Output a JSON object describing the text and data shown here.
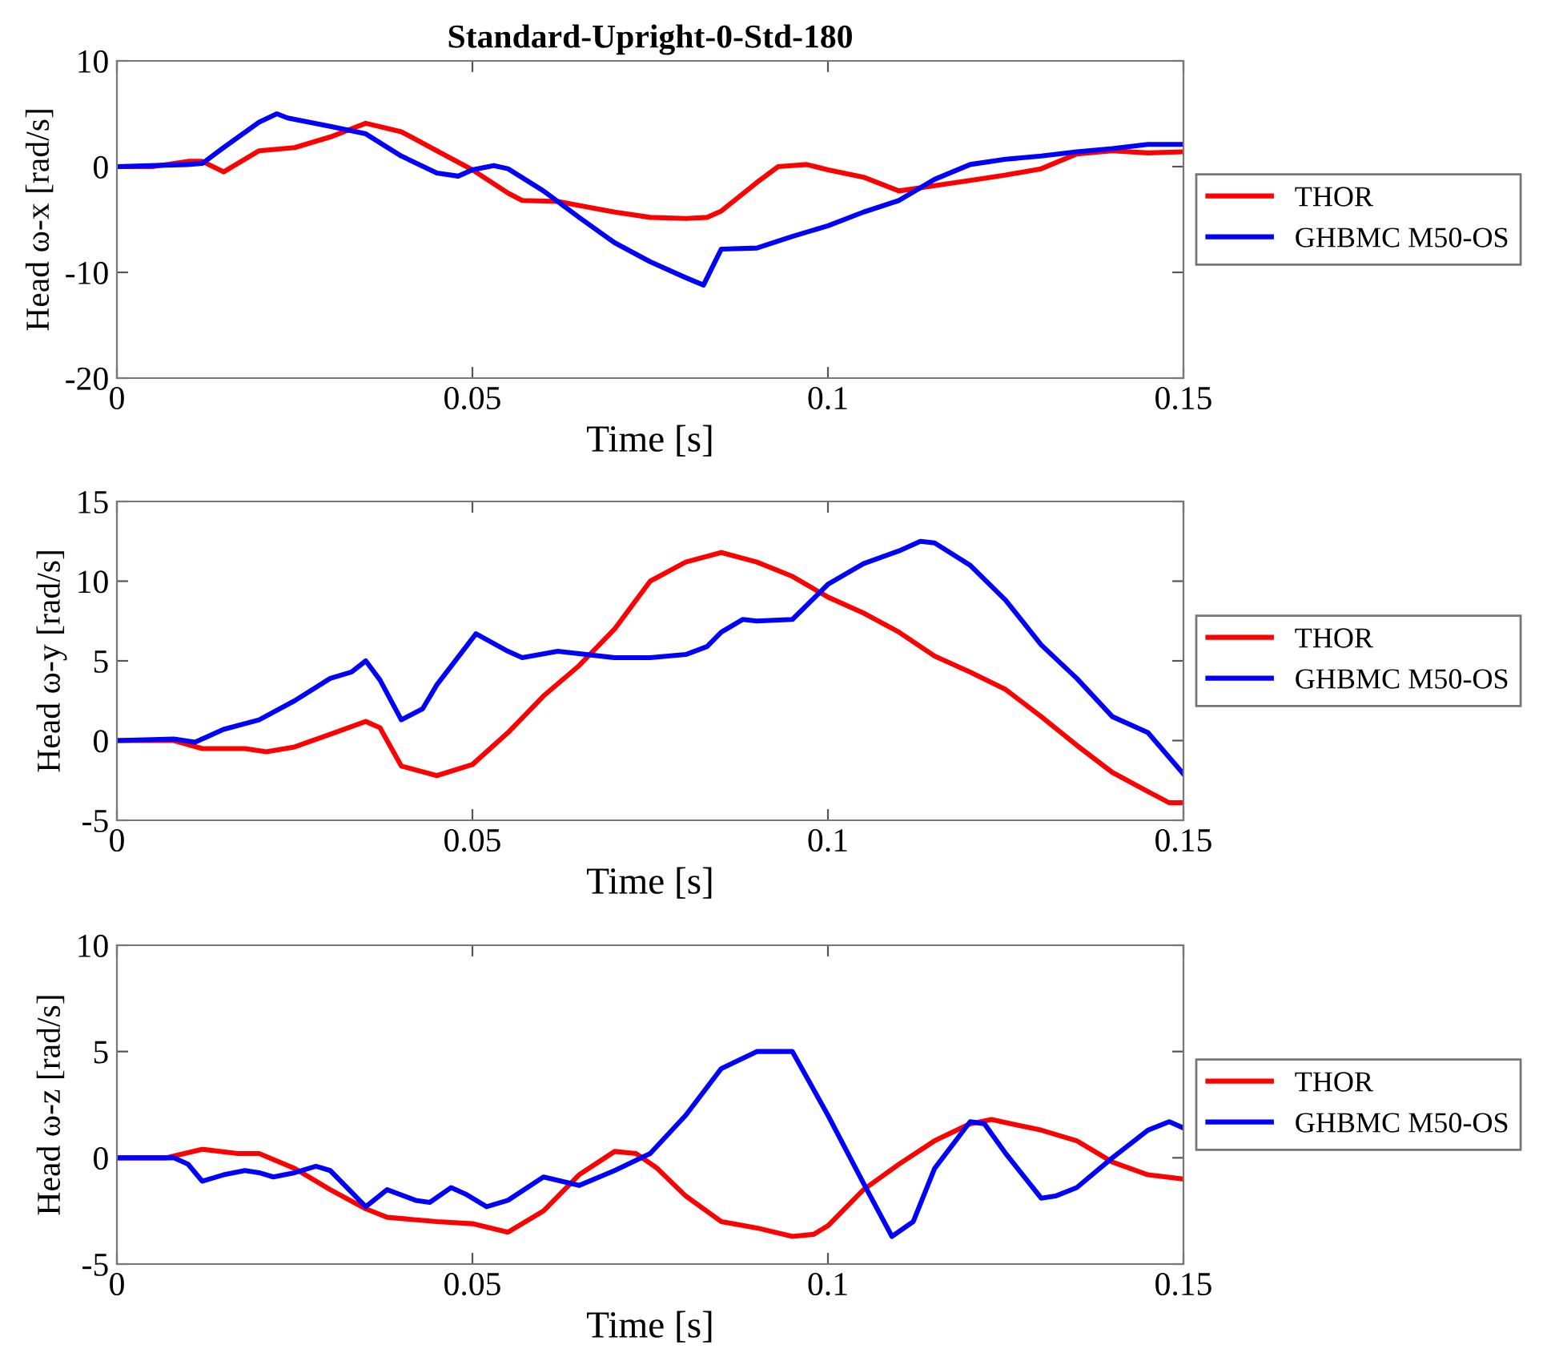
{
  "chart_data": [
    {
      "type": "line",
      "title": "Standard-Upright-0-Std-180",
      "xlabel": "Time [s]",
      "ylabel": "Head ω-x [rad/s]",
      "xlim": [
        0,
        0.15
      ],
      "xticks": [
        0,
        0.05,
        0.1,
        0.15
      ],
      "ylim": [
        -20,
        10
      ],
      "yticks": [
        -20,
        -10,
        0,
        10
      ],
      "grid": false,
      "legend": "right",
      "line_style": "solid",
      "series": [
        {
          "name": "THOR",
          "color": "#ff0000",
          "x": [
            0,
            0.005,
            0.01,
            0.012,
            0.015,
            0.02,
            0.025,
            0.03,
            0.035,
            0.04,
            0.045,
            0.05,
            0.055,
            0.057,
            0.062,
            0.07,
            0.075,
            0.08,
            0.083,
            0.085,
            0.09,
            0.093,
            0.097,
            0.1,
            0.105,
            0.11,
            0.115,
            0.12,
            0.125,
            0.13,
            0.135,
            0.14,
            0.145,
            0.15
          ],
          "values": [
            0,
            0,
            0.5,
            0.5,
            -0.5,
            1.5,
            1.8,
            2.8,
            4.1,
            3.3,
            1.5,
            -0.3,
            -2.5,
            -3.2,
            -3.3,
            -4.3,
            -4.8,
            -4.9,
            -4.8,
            -4.2,
            -1.5,
            0,
            0.2,
            -0.3,
            -1,
            -2.3,
            -1.8,
            -1.3,
            -0.8,
            -0.2,
            1.2,
            1.5,
            1.3,
            1.4
          ]
        },
        {
          "name": "GHBMC M50-OS",
          "color": "#0000ff",
          "x": [
            0,
            0.01,
            0.012,
            0.015,
            0.02,
            0.0225,
            0.024,
            0.03,
            0.035,
            0.04,
            0.045,
            0.048,
            0.05,
            0.053,
            0.055,
            0.06,
            0.065,
            0.07,
            0.075,
            0.08,
            0.0825,
            0.085,
            0.09,
            0.095,
            0.1,
            0.105,
            0.11,
            0.115,
            0.12,
            0.125,
            0.13,
            0.135,
            0.14,
            0.145,
            0.15
          ],
          "values": [
            0,
            0.2,
            0.3,
            1.8,
            4.2,
            5,
            4.6,
            3.8,
            3.1,
            1.0,
            -0.6,
            -0.9,
            -0.3,
            0.1,
            -0.2,
            -2.3,
            -4.8,
            -7.2,
            -9,
            -10.5,
            -11.2,
            -7.8,
            -7.7,
            -6.6,
            -5.6,
            -4.3,
            -3.2,
            -1.2,
            0.2,
            0.7,
            1.0,
            1.4,
            1.7,
            2.1,
            2.1
          ]
        }
      ]
    },
    {
      "type": "line",
      "xlabel": "Time [s]",
      "ylabel": "Head ω-y [rad/s]",
      "xlim": [
        0,
        0.15
      ],
      "xticks": [
        0,
        0.05,
        0.1,
        0.15
      ],
      "ylim": [
        -5,
        15
      ],
      "yticks": [
        -5,
        0,
        5,
        10,
        15
      ],
      "grid": false,
      "legend": "right",
      "line_style": "solid",
      "series": [
        {
          "name": "THOR",
          "color": "#ff0000",
          "x": [
            0,
            0.008,
            0.012,
            0.018,
            0.021,
            0.025,
            0.03,
            0.035,
            0.037,
            0.04,
            0.045,
            0.05,
            0.055,
            0.06,
            0.065,
            0.07,
            0.075,
            0.08,
            0.085,
            0.09,
            0.095,
            0.1,
            0.105,
            0.11,
            0.115,
            0.12,
            0.125,
            0.13,
            0.135,
            0.14,
            0.145,
            0.148,
            0.15
          ],
          "values": [
            0,
            0,
            -0.5,
            -0.5,
            -0.7,
            -0.4,
            0.4,
            1.2,
            0.8,
            -1.6,
            -2.2,
            -1.5,
            0.5,
            2.8,
            4.7,
            7.0,
            10.0,
            11.2,
            11.8,
            11.2,
            10.3,
            9.0,
            8.0,
            6.8,
            5.3,
            4.3,
            3.2,
            1.5,
            -0.3,
            -2.0,
            -3.2,
            -3.9,
            -3.9
          ]
        },
        {
          "name": "GHBMC M50-OS",
          "color": "#0000ff",
          "x": [
            0,
            0.008,
            0.011,
            0.015,
            0.02,
            0.025,
            0.03,
            0.033,
            0.035,
            0.037,
            0.04,
            0.043,
            0.045,
            0.0505,
            0.055,
            0.057,
            0.062,
            0.07,
            0.075,
            0.08,
            0.083,
            0.085,
            0.088,
            0.09,
            0.095,
            0.1,
            0.105,
            0.11,
            0.113,
            0.115,
            0.12,
            0.125,
            0.13,
            0.135,
            0.14,
            0.145,
            0.15
          ],
          "values": [
            0,
            0.1,
            -0.1,
            0.7,
            1.3,
            2.5,
            3.9,
            4.3,
            5,
            3.8,
            1.3,
            2.0,
            3.5,
            6.7,
            5.6,
            5.2,
            5.6,
            5.2,
            5.2,
            5.4,
            5.9,
            6.8,
            7.6,
            7.5,
            7.6,
            9.8,
            11.1,
            11.9,
            12.5,
            12.4,
            11.0,
            8.8,
            6.0,
            3.9,
            1.5,
            0.5,
            -2.1
          ]
        }
      ]
    },
    {
      "type": "line",
      "xlabel": "Time [s]",
      "ylabel": "Head ω-z [rad/s]",
      "xlim": [
        0,
        0.15
      ],
      "xticks": [
        0,
        0.05,
        0.1,
        0.15
      ],
      "ylim": [
        -5,
        10
      ],
      "yticks": [
        -5,
        0,
        5,
        10
      ],
      "grid": false,
      "legend": "right",
      "line_style": "solid",
      "series": [
        {
          "name": "THOR",
          "color": "#ff0000",
          "x": [
            0,
            0.007,
            0.012,
            0.017,
            0.02,
            0.025,
            0.03,
            0.035,
            0.038,
            0.045,
            0.05,
            0.055,
            0.06,
            0.065,
            0.07,
            0.073,
            0.076,
            0.08,
            0.085,
            0.09,
            0.095,
            0.098,
            0.1,
            0.105,
            0.11,
            0.115,
            0.12,
            0.123,
            0.13,
            0.135,
            0.14,
            0.145,
            0.15
          ],
          "values": [
            0,
            0,
            0.4,
            0.2,
            0.2,
            -0.5,
            -1.5,
            -2.4,
            -2.8,
            -3,
            -3.1,
            -3.5,
            -2.5,
            -0.8,
            0.3,
            0.2,
            -0.5,
            -1.8,
            -3,
            -3.3,
            -3.7,
            -3.6,
            -3.2,
            -1.5,
            -0.3,
            0.8,
            1.6,
            1.8,
            1.3,
            0.8,
            -0.2,
            -0.8,
            -1.0
          ]
        },
        {
          "name": "GHBMC M50-OS",
          "color": "#0000ff",
          "x": [
            0,
            0.008,
            0.01,
            0.012,
            0.015,
            0.018,
            0.02,
            0.022,
            0.025,
            0.028,
            0.03,
            0.035,
            0.038,
            0.042,
            0.044,
            0.047,
            0.049,
            0.052,
            0.055,
            0.06,
            0.065,
            0.07,
            0.075,
            0.08,
            0.085,
            0.09,
            0.095,
            0.1,
            0.105,
            0.109,
            0.112,
            0.115,
            0.12,
            0.122,
            0.125,
            0.13,
            0.132,
            0.135,
            0.14,
            0.145,
            0.148,
            0.15
          ],
          "values": [
            0,
            0,
            -0.3,
            -1.1,
            -0.8,
            -0.6,
            -0.7,
            -0.9,
            -0.7,
            -0.4,
            -0.6,
            -2.3,
            -1.5,
            -2.0,
            -2.1,
            -1.4,
            -1.7,
            -2.3,
            -2.0,
            -0.9,
            -1.3,
            -0.6,
            0.2,
            2.0,
            4.2,
            5.0,
            5.0,
            2.0,
            -1.2,
            -3.7,
            -3.0,
            -0.5,
            1.7,
            1.6,
            0.2,
            -1.9,
            -1.8,
            -1.4,
            0.0,
            1.3,
            1.7,
            1.4
          ]
        }
      ]
    }
  ]
}
